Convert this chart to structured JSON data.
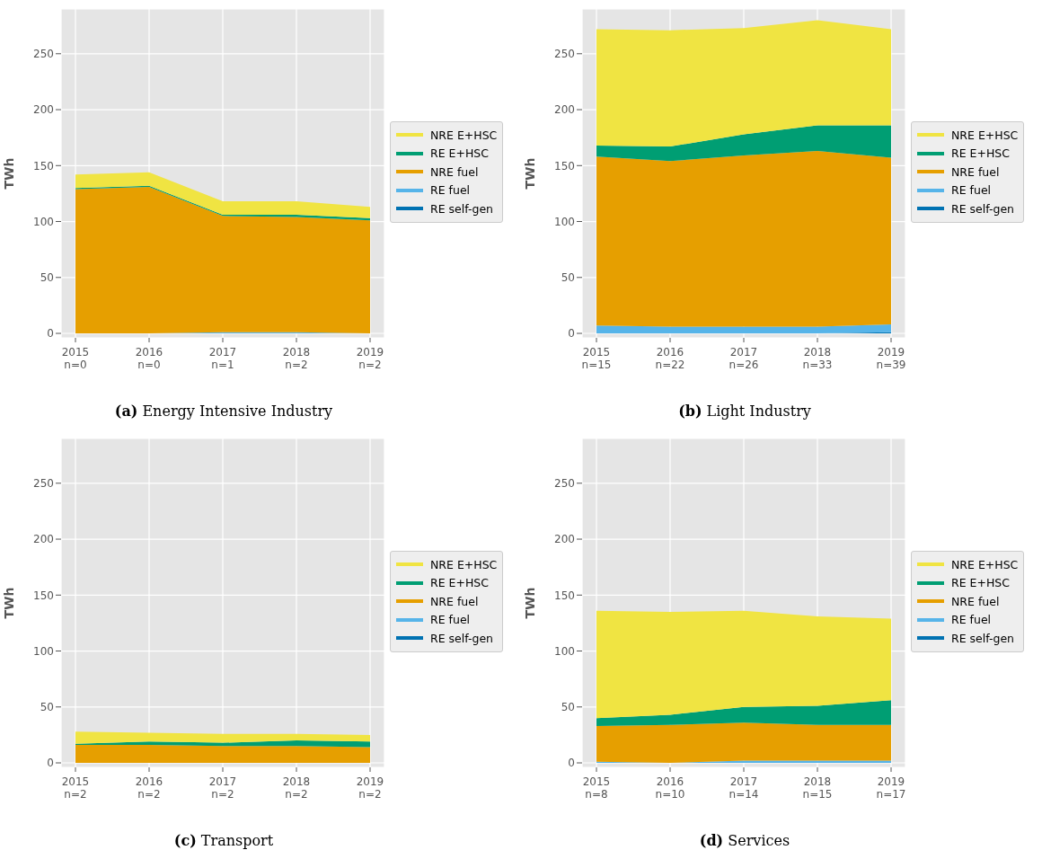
{
  "chart_data": [
    {
      "type": "area",
      "stacked": true,
      "title": "(a) Energy Intensive Industry",
      "ylabel": "TWh",
      "categories": [
        "2015\nn=0",
        "2016\nn=0",
        "2017\nn=1",
        "2018\nn=2",
        "2019\nn=2"
      ],
      "ylim": [
        -4,
        290
      ],
      "yticks": [
        0,
        50,
        100,
        150,
        200,
        250
      ],
      "grid": true,
      "legend": "right",
      "series": [
        {
          "name": "RE self-gen",
          "color": "#0072b2",
          "values": [
            null,
            null,
            null,
            null,
            null
          ]
        },
        {
          "name": "RE fuel",
          "color": "#56b4e9",
          "values": [
            0,
            0,
            1,
            1,
            0
          ]
        },
        {
          "name": "NRE fuel",
          "color": "#e69f00",
          "values": [
            129,
            131,
            104,
            103,
            101
          ]
        },
        {
          "name": "RE E+HSC",
          "color": "#009e73",
          "values": [
            1,
            1,
            1,
            2,
            2
          ]
        },
        {
          "name": "NRE E+HSC",
          "color": "#f0e442",
          "values": [
            12,
            12,
            12,
            12,
            10
          ]
        }
      ]
    },
    {
      "type": "area",
      "stacked": true,
      "title": "(b) Light Industry",
      "ylabel": "TWh",
      "categories": [
        "2015\nn=15",
        "2016\nn=22",
        "2017\nn=26",
        "2018\nn=33",
        "2019\nn=39"
      ],
      "ylim": [
        -4,
        290
      ],
      "yticks": [
        0,
        50,
        100,
        150,
        200,
        250
      ],
      "grid": true,
      "legend": "right",
      "series": [
        {
          "name": "RE self-gen",
          "color": "#0072b2",
          "values": [
            0,
            0,
            0,
            0,
            1
          ]
        },
        {
          "name": "RE fuel",
          "color": "#56b4e9",
          "values": [
            7,
            6,
            6,
            6,
            7
          ]
        },
        {
          "name": "NRE fuel",
          "color": "#e69f00",
          "values": [
            151,
            148,
            153,
            157,
            149
          ]
        },
        {
          "name": "RE E+HSC",
          "color": "#009e73",
          "values": [
            10,
            13,
            19,
            23,
            29
          ]
        },
        {
          "name": "NRE E+HSC",
          "color": "#f0e442",
          "values": [
            104,
            104,
            95,
            94,
            86
          ]
        }
      ]
    },
    {
      "type": "area",
      "stacked": true,
      "title": "(c) Transport",
      "ylabel": "TWh",
      "categories": [
        "2015\nn=2",
        "2016\nn=2",
        "2017\nn=2",
        "2018\nn=2",
        "2019\nn=2"
      ],
      "ylim": [
        -4,
        290
      ],
      "yticks": [
        0,
        50,
        100,
        150,
        200,
        250
      ],
      "grid": true,
      "legend": "right",
      "series": [
        {
          "name": "RE self-gen",
          "color": "#0072b2",
          "values": [
            null,
            null,
            null,
            null,
            null
          ]
        },
        {
          "name": "RE fuel",
          "color": "#56b4e9",
          "values": [
            null,
            null,
            null,
            null,
            null
          ]
        },
        {
          "name": "NRE fuel",
          "color": "#e69f00",
          "values": [
            16,
            16,
            15,
            15,
            14
          ]
        },
        {
          "name": "RE E+HSC",
          "color": "#009e73",
          "values": [
            1,
            3,
            3,
            5,
            5
          ]
        },
        {
          "name": "NRE E+HSC",
          "color": "#f0e442",
          "values": [
            11,
            8,
            8,
            6,
            6
          ]
        }
      ]
    },
    {
      "type": "area",
      "stacked": true,
      "title": "(d) Services",
      "ylabel": "TWh",
      "categories": [
        "2015\nn=8",
        "2016\nn=10",
        "2017\nn=14",
        "2018\nn=15",
        "2019\nn=17"
      ],
      "ylim": [
        -4,
        290
      ],
      "yticks": [
        0,
        50,
        100,
        150,
        200,
        250
      ],
      "grid": true,
      "legend": "right",
      "series": [
        {
          "name": "RE self-gen",
          "color": "#0072b2",
          "values": [
            null,
            null,
            null,
            null,
            null
          ]
        },
        {
          "name": "RE fuel",
          "color": "#56b4e9",
          "values": [
            1,
            0,
            2,
            2,
            2
          ]
        },
        {
          "name": "NRE fuel",
          "color": "#e69f00",
          "values": [
            32,
            34,
            34,
            32,
            32
          ]
        },
        {
          "name": "RE E+HSC",
          "color": "#009e73",
          "values": [
            7,
            9,
            14,
            17,
            22
          ]
        },
        {
          "name": "NRE E+HSC",
          "color": "#f0e442",
          "values": [
            96,
            92,
            86,
            80,
            73
          ]
        }
      ]
    }
  ]
}
